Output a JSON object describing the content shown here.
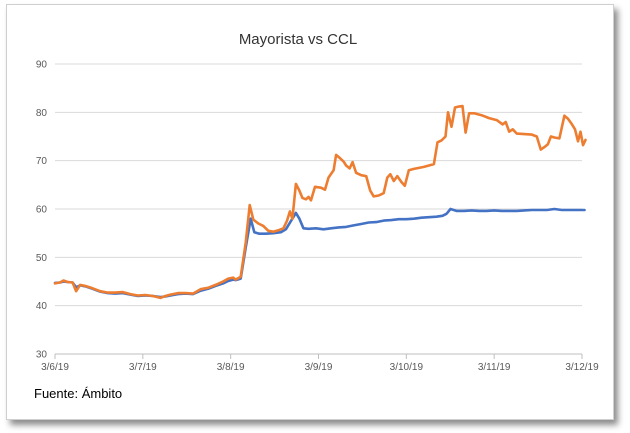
{
  "chart_data": {
    "type": "line",
    "title": "Mayorista vs CCL",
    "xlabel": "",
    "ylabel": "",
    "ylim": [
      30,
      90
    ],
    "yticks": [
      30,
      40,
      50,
      60,
      70,
      80,
      90
    ],
    "xticks": [
      "3/6/19",
      "3/7/19",
      "3/8/19",
      "3/9/19",
      "3/10/19",
      "3/11/19",
      "3/12/19"
    ],
    "grid": "horizontal",
    "legend": "none",
    "colors": {
      "mayorista": "#4472c4",
      "ccl": "#ed7d31",
      "grid": "#d9d9d9"
    },
    "series": [
      {
        "points": [
          [
            0.0,
            44.7
          ],
          [
            0.1,
            44.8
          ],
          [
            0.17,
            45.0
          ],
          [
            0.25,
            44.9
          ],
          [
            0.35,
            44.8
          ],
          [
            0.42,
            43.8
          ],
          [
            0.5,
            44.2
          ],
          [
            0.6,
            44.0
          ],
          [
            0.75,
            43.5
          ],
          [
            0.9,
            42.9
          ],
          [
            1.05,
            42.6
          ],
          [
            1.2,
            42.5
          ],
          [
            1.35,
            42.6
          ],
          [
            1.5,
            42.3
          ],
          [
            1.65,
            42.0
          ],
          [
            1.8,
            42.1
          ],
          [
            1.95,
            42.0
          ],
          [
            2.1,
            41.8
          ],
          [
            2.2,
            41.9
          ],
          [
            2.3,
            42.1
          ],
          [
            2.45,
            42.4
          ],
          [
            2.6,
            42.5
          ],
          [
            2.75,
            42.4
          ],
          [
            2.9,
            43.1
          ],
          [
            3.05,
            43.5
          ],
          [
            3.2,
            44.1
          ],
          [
            3.35,
            44.6
          ],
          [
            3.45,
            45.1
          ],
          [
            3.55,
            45.4
          ],
          [
            3.6,
            45.3
          ],
          [
            3.7,
            45.6
          ],
          [
            3.8,
            52.0
          ],
          [
            3.9,
            58.0
          ],
          [
            3.97,
            55.2
          ],
          [
            4.07,
            54.9
          ],
          [
            4.2,
            54.9
          ],
          [
            4.35,
            55.0
          ],
          [
            4.5,
            55.2
          ],
          [
            4.6,
            55.8
          ],
          [
            4.7,
            57.5
          ],
          [
            4.8,
            59.2
          ],
          [
            4.87,
            58.0
          ],
          [
            4.95,
            56.0
          ],
          [
            5.05,
            55.9
          ],
          [
            5.2,
            56.0
          ],
          [
            5.35,
            55.8
          ],
          [
            5.5,
            56.0
          ],
          [
            5.65,
            56.2
          ],
          [
            5.8,
            56.3
          ],
          [
            5.95,
            56.6
          ],
          [
            6.1,
            56.9
          ],
          [
            6.25,
            57.2
          ],
          [
            6.4,
            57.3
          ],
          [
            6.55,
            57.6
          ],
          [
            6.7,
            57.7
          ],
          [
            6.85,
            57.9
          ],
          [
            7.0,
            57.9
          ],
          [
            7.15,
            58.0
          ],
          [
            7.3,
            58.2
          ],
          [
            7.45,
            58.3
          ],
          [
            7.6,
            58.4
          ],
          [
            7.72,
            58.6
          ],
          [
            7.8,
            59.0
          ],
          [
            7.88,
            60.0
          ],
          [
            8.0,
            59.6
          ],
          [
            8.15,
            59.6
          ],
          [
            8.3,
            59.7
          ],
          [
            8.45,
            59.6
          ],
          [
            8.6,
            59.6
          ],
          [
            8.75,
            59.7
          ],
          [
            8.9,
            59.6
          ],
          [
            9.05,
            59.6
          ],
          [
            9.2,
            59.6
          ],
          [
            9.35,
            59.7
          ],
          [
            9.5,
            59.8
          ],
          [
            9.65,
            59.8
          ],
          [
            9.8,
            59.8
          ],
          [
            9.95,
            60.0
          ],
          [
            10.1,
            59.8
          ],
          [
            10.25,
            59.8
          ],
          [
            10.4,
            59.8
          ],
          [
            10.55,
            59.8
          ]
        ]
      },
      {
        "points": [
          [
            0.0,
            44.6
          ],
          [
            0.1,
            44.8
          ],
          [
            0.17,
            45.2
          ],
          [
            0.25,
            44.9
          ],
          [
            0.35,
            44.8
          ],
          [
            0.42,
            43.0
          ],
          [
            0.5,
            44.3
          ],
          [
            0.6,
            44.1
          ],
          [
            0.75,
            43.6
          ],
          [
            0.9,
            43.0
          ],
          [
            1.05,
            42.7
          ],
          [
            1.2,
            42.7
          ],
          [
            1.35,
            42.8
          ],
          [
            1.5,
            42.4
          ],
          [
            1.65,
            42.1
          ],
          [
            1.8,
            42.2
          ],
          [
            1.95,
            42.0
          ],
          [
            2.1,
            41.6
          ],
          [
            2.2,
            42.0
          ],
          [
            2.3,
            42.3
          ],
          [
            2.45,
            42.6
          ],
          [
            2.6,
            42.6
          ],
          [
            2.75,
            42.5
          ],
          [
            2.9,
            43.4
          ],
          [
            3.05,
            43.7
          ],
          [
            3.2,
            44.3
          ],
          [
            3.35,
            45.0
          ],
          [
            3.45,
            45.6
          ],
          [
            3.55,
            45.8
          ],
          [
            3.6,
            45.4
          ],
          [
            3.7,
            46.0
          ],
          [
            3.8,
            53.0
          ],
          [
            3.88,
            60.8
          ],
          [
            3.95,
            57.8
          ],
          [
            4.05,
            57.0
          ],
          [
            4.15,
            56.5
          ],
          [
            4.25,
            55.5
          ],
          [
            4.35,
            55.3
          ],
          [
            4.45,
            55.6
          ],
          [
            4.55,
            56.0
          ],
          [
            4.62,
            57.5
          ],
          [
            4.68,
            59.5
          ],
          [
            4.73,
            58.0
          ],
          [
            4.8,
            65.2
          ],
          [
            4.87,
            63.8
          ],
          [
            4.93,
            62.3
          ],
          [
            5.0,
            62.0
          ],
          [
            5.05,
            62.5
          ],
          [
            5.1,
            61.8
          ],
          [
            5.18,
            64.6
          ],
          [
            5.3,
            64.4
          ],
          [
            5.38,
            64.0
          ],
          [
            5.45,
            66.5
          ],
          [
            5.55,
            68.0
          ],
          [
            5.6,
            71.2
          ],
          [
            5.68,
            70.5
          ],
          [
            5.75,
            69.8
          ],
          [
            5.8,
            69.0
          ],
          [
            5.87,
            68.4
          ],
          [
            5.93,
            69.7
          ],
          [
            6.0,
            67.5
          ],
          [
            6.1,
            67.0
          ],
          [
            6.2,
            66.8
          ],
          [
            6.28,
            63.8
          ],
          [
            6.35,
            62.6
          ],
          [
            6.45,
            62.8
          ],
          [
            6.55,
            63.3
          ],
          [
            6.62,
            66.5
          ],
          [
            6.68,
            67.2
          ],
          [
            6.75,
            65.8
          ],
          [
            6.82,
            66.8
          ],
          [
            6.9,
            65.6
          ],
          [
            6.97,
            64.8
          ],
          [
            7.05,
            68.0
          ],
          [
            7.15,
            68.3
          ],
          [
            7.25,
            68.5
          ],
          [
            7.35,
            68.7
          ],
          [
            7.45,
            69.0
          ],
          [
            7.55,
            69.3
          ],
          [
            7.62,
            73.8
          ],
          [
            7.7,
            74.2
          ],
          [
            7.78,
            75.0
          ],
          [
            7.83,
            80.0
          ],
          [
            7.9,
            77.0
          ],
          [
            7.97,
            81.0
          ],
          [
            8.05,
            81.2
          ],
          [
            8.12,
            81.3
          ],
          [
            8.18,
            75.8
          ],
          [
            8.25,
            79.8
          ],
          [
            8.35,
            79.8
          ],
          [
            8.5,
            79.4
          ],
          [
            8.65,
            78.8
          ],
          [
            8.8,
            78.4
          ],
          [
            8.92,
            77.5
          ],
          [
            8.98,
            78.0
          ],
          [
            9.05,
            76.0
          ],
          [
            9.12,
            76.5
          ],
          [
            9.2,
            75.6
          ],
          [
            9.35,
            75.5
          ],
          [
            9.5,
            75.4
          ],
          [
            9.6,
            75.0
          ],
          [
            9.68,
            72.3
          ],
          [
            9.75,
            72.8
          ],
          [
            9.82,
            73.4
          ],
          [
            9.88,
            75.0
          ],
          [
            9.95,
            74.8
          ],
          [
            10.05,
            74.6
          ],
          [
            10.15,
            79.3
          ],
          [
            10.22,
            78.7
          ],
          [
            10.3,
            77.5
          ],
          [
            10.36,
            76.5
          ],
          [
            10.42,
            74.0
          ],
          [
            10.47,
            76.0
          ],
          [
            10.52,
            73.2
          ],
          [
            10.57,
            74.3
          ]
        ]
      }
    ]
  },
  "source_text": "Fuente: Ámbito"
}
